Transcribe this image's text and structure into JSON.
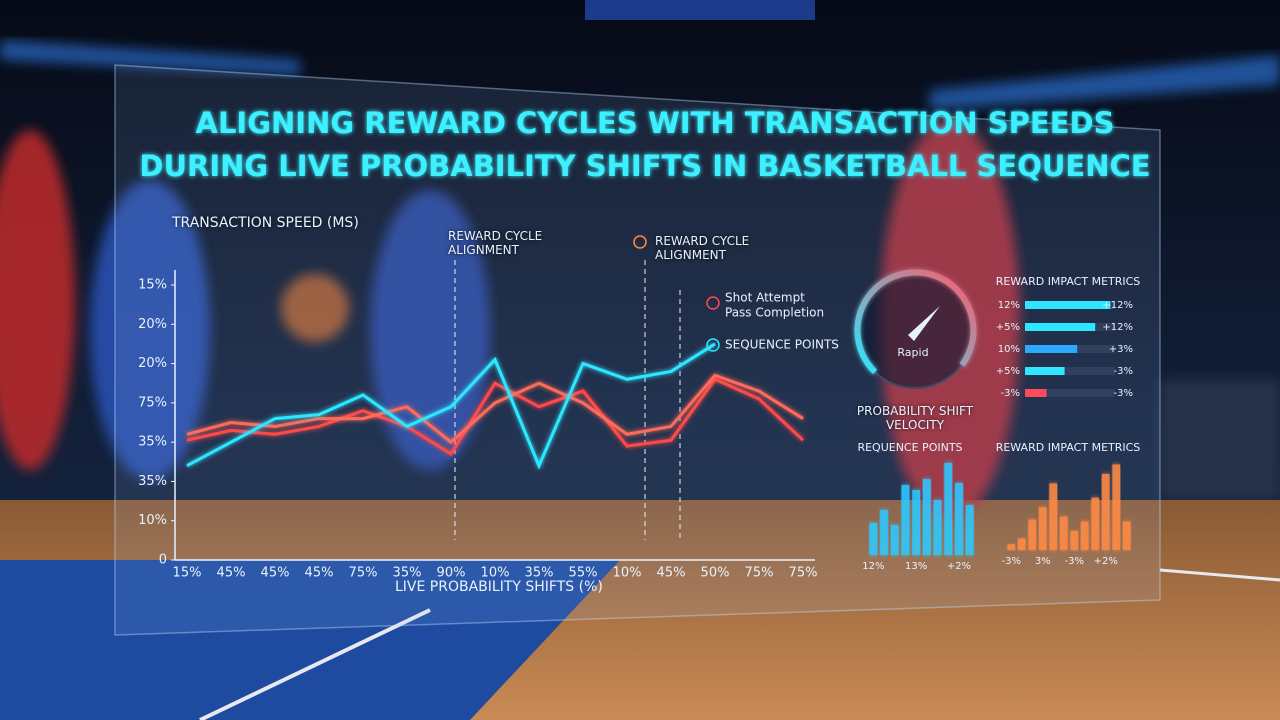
{
  "chart_data": [
    {
      "type": "line",
      "title": "ALIGNING REWARD CYCLES WITH TRANSACTION SPEEDS",
      "subtitle": "DURING LIVE PROBABILITY SHIFTS IN BASKETBALL SEQUENCE",
      "y_label": "TRANSACTION SPEED (ms)",
      "x_label": "LIVE PROBABILITY SHIFTS (%)",
      "annotations": [
        "REWARD CYCLE ALIGNMENT",
        "REWARD CYCLE ALIGNMENT"
      ],
      "categories": [
        "15%",
        "45%",
        "45%",
        "45%",
        "75%",
        "35%",
        "90%",
        "10%",
        "35%",
        "55%",
        "10%",
        "45%",
        "50%",
        "75%",
        "75%"
      ],
      "ylim": [
        0,
        7
      ],
      "yticks": [
        {
          "value": 0,
          "label": "0"
        },
        {
          "value": 1,
          "label": "10%"
        },
        {
          "value": 2,
          "label": "35%"
        },
        {
          "value": 3,
          "label": "35%"
        },
        {
          "value": 4,
          "label": "75%"
        },
        {
          "value": 5,
          "label": "20%"
        },
        {
          "value": 6,
          "label": "20%"
        },
        {
          "value": 7,
          "label": "15%"
        }
      ],
      "series": [
        {
          "name": "Shot Attempt",
          "color": "#ff4a4a",
          "values": [
            3.05,
            3.3,
            3.2,
            3.4,
            3.8,
            3.4,
            2.7,
            4.5,
            3.9,
            4.3,
            2.9,
            3.05,
            4.6,
            4.1,
            3.05
          ]
        },
        {
          "name": "Pass Completion",
          "color": "#ff6b5a",
          "values": [
            3.2,
            3.5,
            3.4,
            3.6,
            3.6,
            3.9,
            3.0,
            4.0,
            4.5,
            4.0,
            3.2,
            3.4,
            4.7,
            4.3,
            3.6
          ]
        },
        {
          "name": "SEQUENCE POINTS",
          "color": "#2ee6ff",
          "values": [
            2.4,
            3.0,
            3.6,
            3.7,
            4.2,
            3.4,
            3.9,
            5.1,
            2.4,
            5.0,
            4.6,
            4.8,
            5.5,
            null,
            null
          ]
        }
      ]
    },
    {
      "type": "gauge",
      "label": "Rapid",
      "title": "PROBABILITY SHIFT VELOCITY"
    },
    {
      "type": "hbar",
      "title": "REWARD IMPACT METRICS",
      "categories": [
        "12%",
        "+5%",
        "10%",
        "+5%",
        "-3%"
      ],
      "right_labels": [
        "+12%",
        "+12%",
        "+3%",
        "-3%",
        "-3%"
      ],
      "values": [
        95,
        78,
        58,
        44,
        24
      ],
      "xlim": [
        0,
        100
      ],
      "colors": [
        "#2ee6ff",
        "#2ee6ff",
        "#2ea8ff",
        "#2ee6ff",
        "#ff4a5a"
      ]
    },
    {
      "type": "bar",
      "title": "REQUENCE POINTS",
      "categories": [
        "12%",
        null,
        null,
        null,
        "13%",
        null,
        null,
        null,
        "+2%",
        null
      ],
      "values": [
        32,
        45,
        30,
        70,
        65,
        76,
        55,
        92,
        72,
        50
      ],
      "ylim": [
        0,
        100
      ],
      "color": "#2ec8ff"
    },
    {
      "type": "bar",
      "title": "REWARD IMPACT METRICS",
      "categories": [
        "-3%",
        null,
        null,
        "3%",
        null,
        null,
        "-3%",
        null,
        null,
        "+2%",
        null,
        null
      ],
      "values": [
        6,
        12,
        32,
        45,
        70,
        35,
        20,
        30,
        55,
        80,
        90,
        30
      ],
      "ylim": [
        0,
        100
      ],
      "color": "#ff8a45"
    }
  ]
}
